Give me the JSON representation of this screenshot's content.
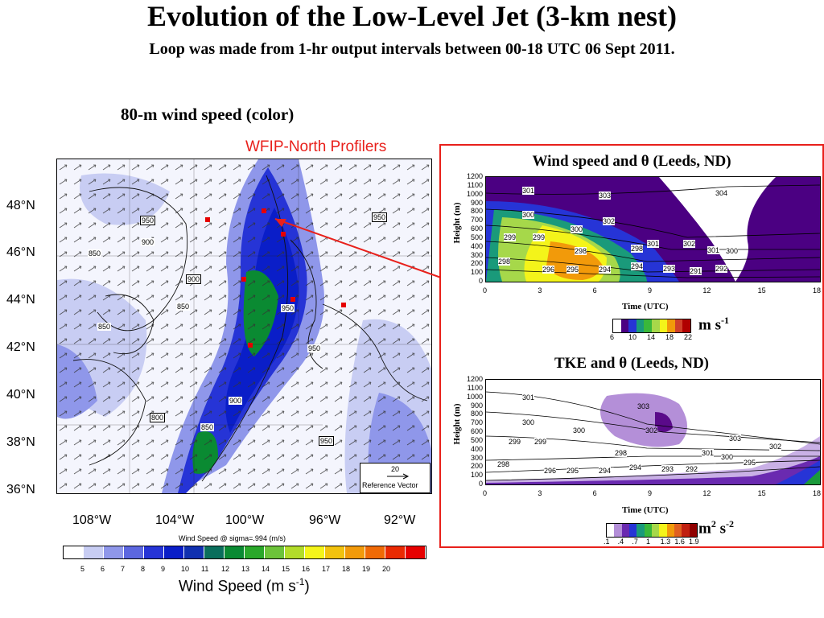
{
  "header": {
    "title": "Evolution of the Low-Level Jet (3-km nest)",
    "subtitle": "Loop was made from 1-hr output intervals between 00-18 UTC 06 Sept 2011."
  },
  "map": {
    "heading": "80-m wind speed (color)",
    "profilers_label": "WFIP-North Profilers",
    "lat_labels": [
      "48°N",
      "46°N",
      "44°N",
      "42°N",
      "40°N",
      "38°N",
      "36°N"
    ],
    "lon_labels": [
      "108°W",
      "104°W",
      "100°W",
      "96°W",
      "92°W"
    ],
    "contour_labels": [
      "950",
      "900",
      "850",
      "900",
      "850",
      "950",
      "850",
      "800",
      "850",
      "950",
      "900",
      "850",
      "950",
      "850",
      "950"
    ],
    "reference_vector_value": "20",
    "reference_vector_label": "Reference Vector",
    "colorbar_title": "Wind Speed @ sigma=.994 (m/s)",
    "colorbar_ticks": [
      "5",
      "6",
      "7",
      "8",
      "9",
      "10",
      "11",
      "12",
      "13",
      "14",
      "15",
      "16",
      "17",
      "18",
      "19",
      "20"
    ],
    "colorbar_colors": [
      "#ffffff",
      "#c8cdf3",
      "#8f97ea",
      "#5c67e0",
      "#2634d6",
      "#0a1ec8",
      "#1030b0",
      "#0a6e5c",
      "#0a8a32",
      "#2aa82a",
      "#6cc33a",
      "#b2dc2a",
      "#f4f41a",
      "#f2c20e",
      "#f29a0a",
      "#f06a06",
      "#ea2a02",
      "#e60000"
    ],
    "colorbar_units": "Wind Speed (m s-1)",
    "colorbar_units_base": "Wind Speed (m s",
    "colorbar_units_exp": "-1",
    "colorbar_units_tail": ")"
  },
  "panel_top": {
    "title": "Wind speed and θ (Leeds, ND)",
    "ylabel": "Height (m)",
    "xlabel": "Time (UTC)",
    "y_ticks": [
      "1200",
      "1100",
      "1000",
      "900",
      "800",
      "700",
      "600",
      "500",
      "400",
      "300",
      "200",
      "100",
      "0"
    ],
    "x_ticks": [
      "0",
      "3",
      "6",
      "9",
      "12",
      "15",
      "18"
    ],
    "contour_labels": [
      "301",
      "303",
      "304",
      "300",
      "302",
      "299",
      "299",
      "300",
      "298",
      "298",
      "301",
      "302",
      "301",
      "300",
      "298",
      "296",
      "295",
      "294",
      "294",
      "293",
      "291",
      "292"
    ],
    "colorbar_ticks": [
      "6",
      "10",
      "14",
      "18",
      "22"
    ],
    "units_base": "m s",
    "units_exp": "-1"
  },
  "panel_bottom": {
    "title": "TKE and θ (Leeds, ND)",
    "ylabel": "Height (m)",
    "xlabel": "Time (UTC)",
    "y_ticks": [
      "1200",
      "1100",
      "1000",
      "900",
      "800",
      "700",
      "600",
      "500",
      "400",
      "300",
      "200",
      "100",
      "0"
    ],
    "x_ticks": [
      "0",
      "3",
      "6",
      "9",
      "12",
      "15",
      "18"
    ],
    "contour_labels": [
      "301",
      "303",
      "300",
      "300",
      "302",
      "303",
      "299",
      "299",
      "298",
      "302",
      "301",
      "300",
      "298",
      "296",
      "295",
      "294",
      "294",
      "293",
      "292",
      "295"
    ],
    "colorbar_ticks": [
      ".1",
      ".4",
      ".7",
      "1",
      "1.3",
      "1.6",
      "1.9"
    ],
    "units_base": "m",
    "units_exp1": "2",
    "units_mid": " s",
    "units_exp2": "-2"
  }
}
